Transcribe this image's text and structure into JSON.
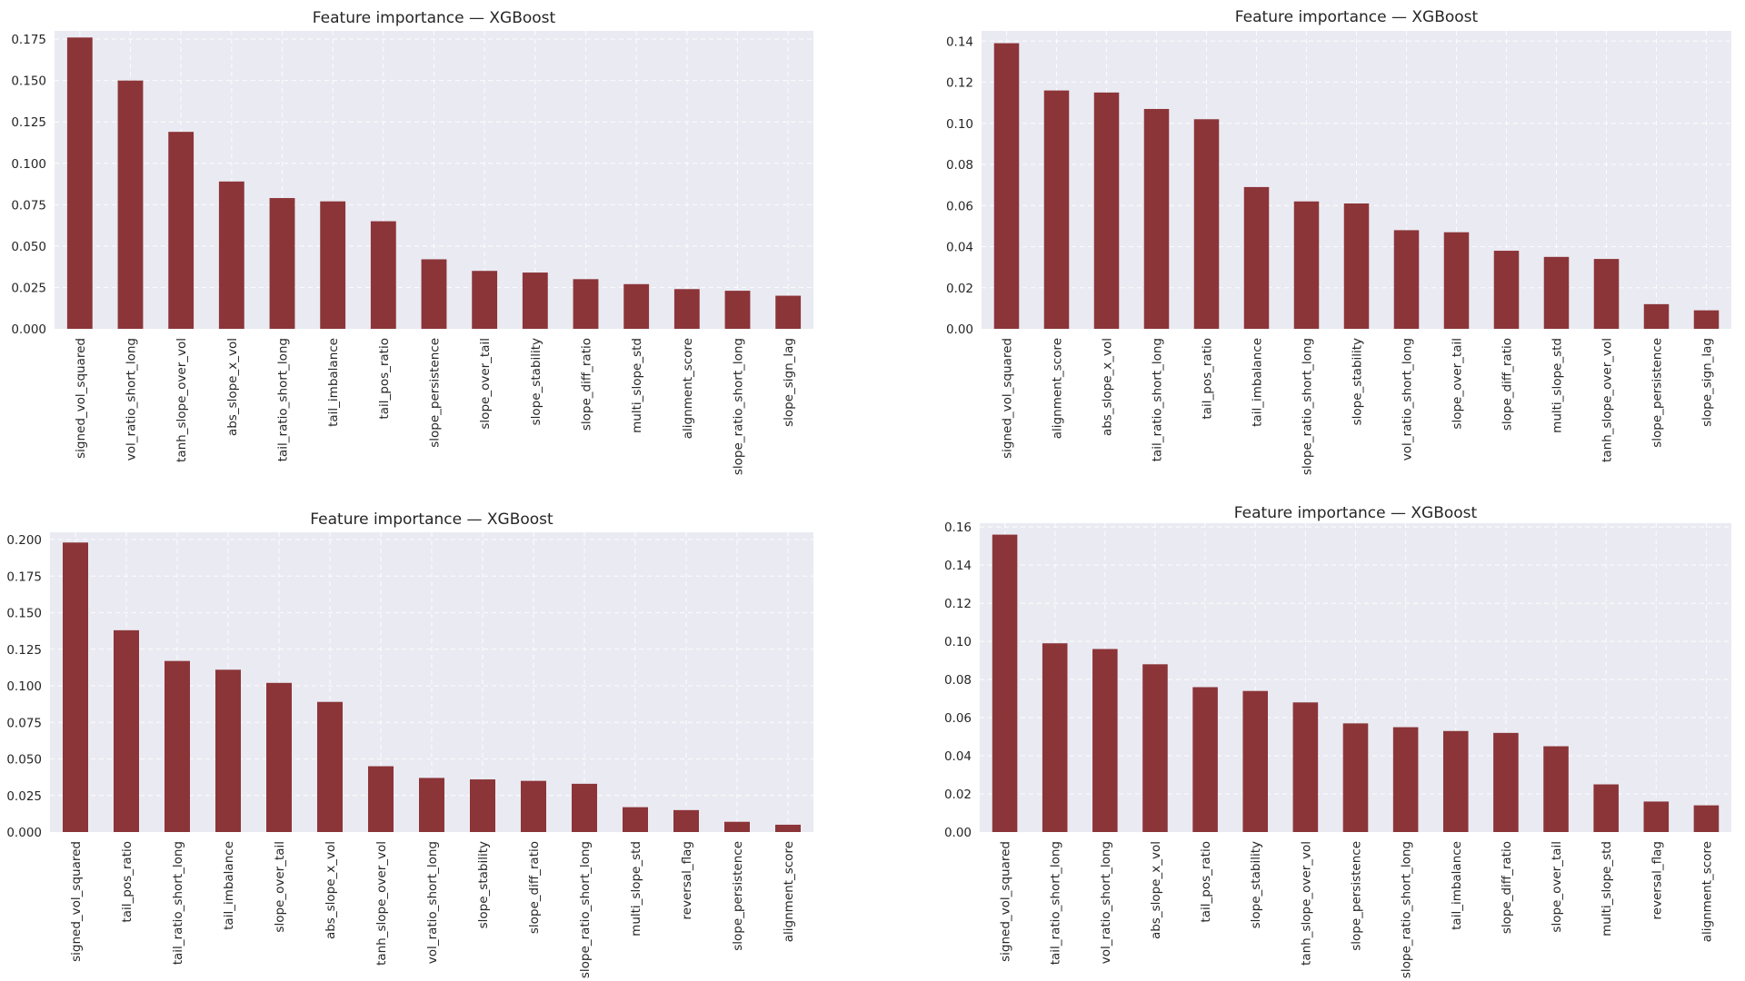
{
  "bar_color": "#8b3538",
  "plot_background": "#eaeaf2",
  "chart_data": [
    {
      "type": "bar",
      "title": "Feature importance — XGBoost",
      "xlabel": "",
      "ylabel": "",
      "ylim": [
        0,
        0.18
      ],
      "yticks": [
        "0.000",
        "0.025",
        "0.050",
        "0.075",
        "0.100",
        "0.125",
        "0.150",
        "0.175"
      ],
      "ytick_values": [
        0,
        0.025,
        0.05,
        0.075,
        0.1,
        0.125,
        0.15,
        0.175
      ],
      "categories": [
        "signed_vol_squared",
        "vol_ratio_short_long",
        "tanh_slope_over_vol",
        "abs_slope_x_vol",
        "tail_ratio_short_long",
        "tail_imbalance",
        "tail_pos_ratio",
        "slope_persistence",
        "slope_over_tail",
        "slope_stability",
        "slope_diff_ratio",
        "multi_slope_std",
        "alignment_score",
        "slope_ratio_short_long",
        "slope_sign_lag"
      ],
      "values": [
        0.176,
        0.15,
        0.119,
        0.089,
        0.079,
        0.077,
        0.065,
        0.042,
        0.035,
        0.034,
        0.03,
        0.027,
        0.024,
        0.023,
        0.02
      ]
    },
    {
      "type": "bar",
      "title": "Feature importance — XGBoost",
      "xlabel": "",
      "ylabel": "",
      "ylim": [
        0,
        0.145
      ],
      "yticks": [
        "0.00",
        "0.02",
        "0.04",
        "0.06",
        "0.08",
        "0.10",
        "0.12",
        "0.14"
      ],
      "ytick_values": [
        0,
        0.02,
        0.04,
        0.06,
        0.08,
        0.1,
        0.12,
        0.14
      ],
      "categories": [
        "signed_vol_squared",
        "alignment_score",
        "abs_slope_x_vol",
        "tail_ratio_short_long",
        "tail_pos_ratio",
        "tail_imbalance",
        "slope_ratio_short_long",
        "slope_stability",
        "vol_ratio_short_long",
        "slope_over_tail",
        "slope_diff_ratio",
        "multi_slope_std",
        "tanh_slope_over_vol",
        "slope_persistence",
        "slope_sign_lag"
      ],
      "values": [
        0.139,
        0.116,
        0.115,
        0.107,
        0.102,
        0.069,
        0.062,
        0.061,
        0.048,
        0.047,
        0.038,
        0.035,
        0.034,
        0.012,
        0.009
      ]
    },
    {
      "type": "bar",
      "title": "Feature importance — XGBoost",
      "xlabel": "",
      "ylabel": "",
      "ylim": [
        0,
        0.205
      ],
      "yticks": [
        "0.000",
        "0.025",
        "0.050",
        "0.075",
        "0.100",
        "0.125",
        "0.150",
        "0.175",
        "0.200"
      ],
      "ytick_values": [
        0,
        0.025,
        0.05,
        0.075,
        0.1,
        0.125,
        0.15,
        0.175,
        0.2
      ],
      "categories": [
        "signed_vol_squared",
        "tail_pos_ratio",
        "tail_ratio_short_long",
        "tail_imbalance",
        "slope_over_tail",
        "abs_slope_x_vol",
        "tanh_slope_over_vol",
        "vol_ratio_short_long",
        "slope_stability",
        "slope_diff_ratio",
        "slope_ratio_short_long",
        "multi_slope_std",
        "reversal_flag",
        "slope_persistence",
        "alignment_score"
      ],
      "values": [
        0.198,
        0.138,
        0.117,
        0.111,
        0.102,
        0.089,
        0.045,
        0.037,
        0.036,
        0.035,
        0.033,
        0.017,
        0.015,
        0.007,
        0.005
      ]
    },
    {
      "type": "bar",
      "title": "Feature importance — XGBoost",
      "xlabel": "",
      "ylabel": "",
      "ylim": [
        0,
        0.162
      ],
      "yticks": [
        "0.00",
        "0.02",
        "0.04",
        "0.06",
        "0.08",
        "0.10",
        "0.12",
        "0.14",
        "0.16"
      ],
      "ytick_values": [
        0,
        0.02,
        0.04,
        0.06,
        0.08,
        0.1,
        0.12,
        0.14,
        0.16
      ],
      "categories": [
        "signed_vol_squared",
        "tail_ratio_short_long",
        "vol_ratio_short_long",
        "abs_slope_x_vol",
        "tail_pos_ratio",
        "slope_stability",
        "tanh_slope_over_vol",
        "slope_persistence",
        "slope_ratio_short_long",
        "tail_imbalance",
        "slope_diff_ratio",
        "slope_over_tail",
        "multi_slope_std",
        "reversal_flag",
        "alignment_score"
      ],
      "values": [
        0.156,
        0.099,
        0.096,
        0.088,
        0.076,
        0.074,
        0.068,
        0.057,
        0.055,
        0.053,
        0.052,
        0.045,
        0.025,
        0.016,
        0.014
      ]
    }
  ]
}
